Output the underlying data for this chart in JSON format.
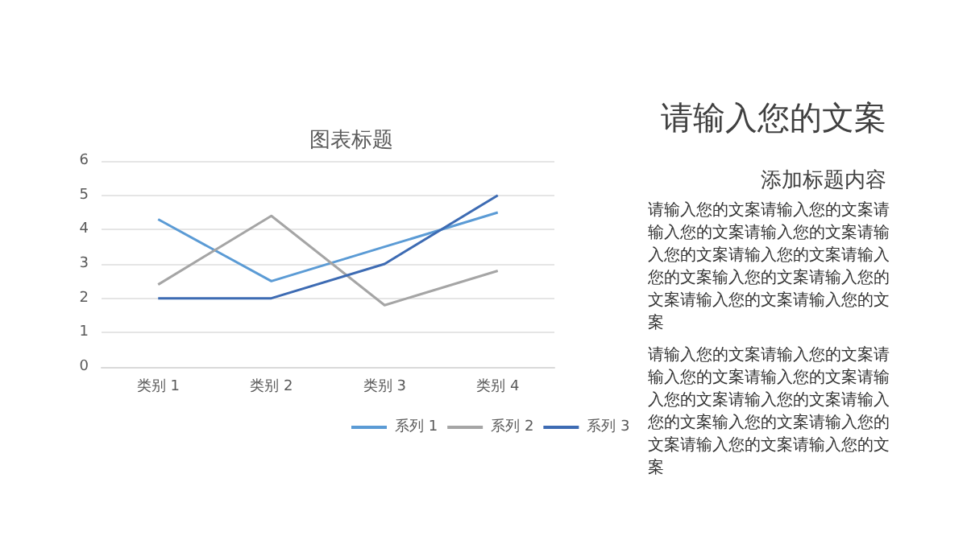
{
  "chart_data": {
    "type": "line",
    "title": "图表标题",
    "categories": [
      "类别 1",
      "类别 2",
      "类别 3",
      "类别 4"
    ],
    "series": [
      {
        "name": "系列 1",
        "color": "#5b9bd5",
        "values": [
          4.3,
          2.5,
          3.5,
          4.5
        ]
      },
      {
        "name": "系列 2",
        "color": "#a5a5a5",
        "values": [
          2.4,
          4.4,
          1.8,
          2.8
        ]
      },
      {
        "name": "系列 3",
        "color": "#3d6bb3",
        "values": [
          2,
          2,
          3,
          5
        ]
      }
    ],
    "ylim": [
      0,
      6
    ],
    "yticks": [
      0,
      1,
      2,
      3,
      4,
      5,
      6
    ],
    "grid": "y",
    "legend": "bottom",
    "marker": "none",
    "line_style": "solid",
    "annotations": [
      "请输入您的文案",
      "添加标题内容",
      "请输入您的文案请输入您的文案请输入您的文案请输入您的文案请输入您的文案请输入您的文案请输入您的文案输入您的文案请输入您的文案请输入您的文案请输入您的文案",
      "请输入您的文案请输入您的文案请输入您的文案请输入您的文案请输入您的文案请输入您的文案请输入您的文案输入您的文案请输入您的文案请输入您的文案请输入您的文案"
    ]
  }
}
